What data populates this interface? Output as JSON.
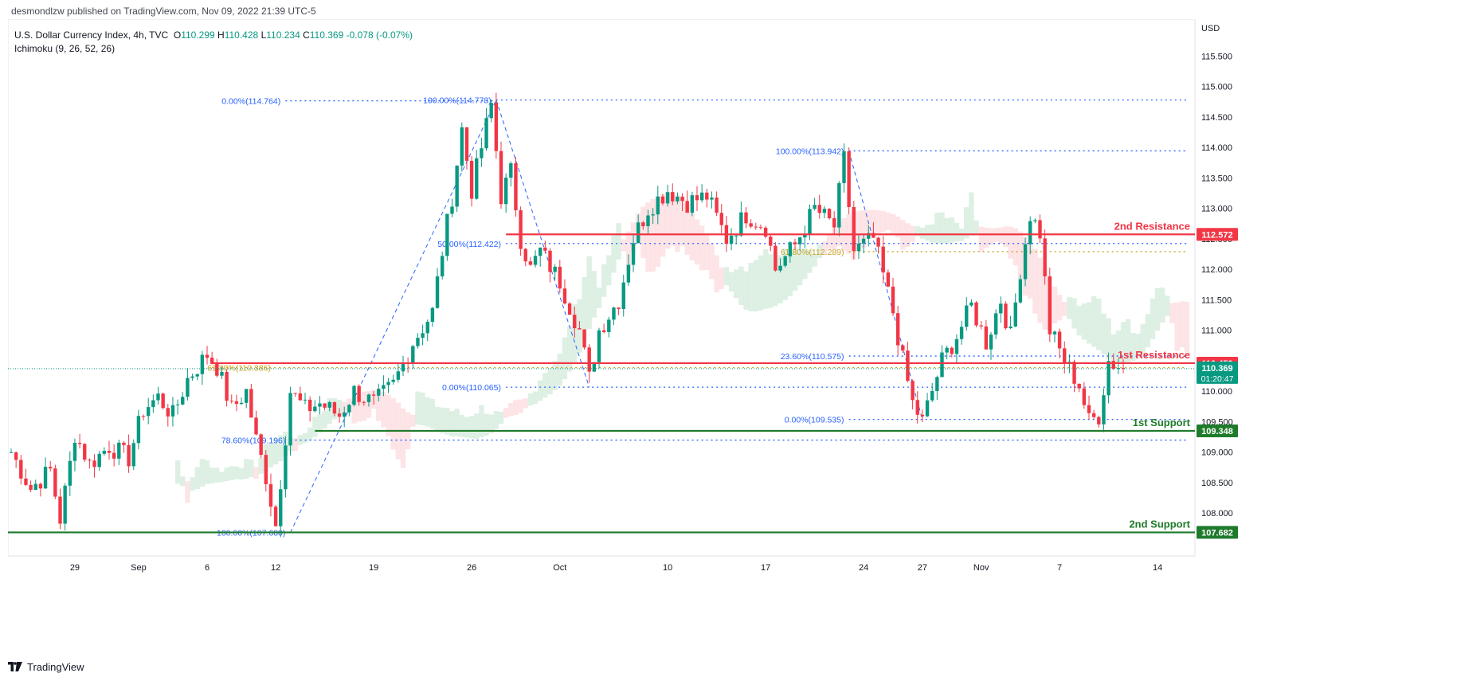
{
  "header": {
    "published": "desmondlzw published on TradingView.com, Nov 09, 2022 21:39 UTC-5"
  },
  "legend": {
    "symbol": "U.S. Dollar Currency Index, 4h, TVC",
    "o_label": "O",
    "o": "110.299",
    "h_label": "H",
    "h": "110.428",
    "l_label": "L",
    "l": "110.234",
    "c_label": "C",
    "c": "110.369",
    "change": "-0.078 (-0.07%)",
    "indicator": "Ichimoku (9, 26, 52, 26)"
  },
  "currency": "USD",
  "footer": {
    "brand": "TradingView"
  },
  "colors": {
    "up": "#089981",
    "down": "#f23645",
    "fib": "#2962ff",
    "fib_gold": "#c9a227",
    "support": "#1e7b2b",
    "resistance": "#f23645",
    "cloud_bull": "#cde8d6",
    "cloud_bear": "#fcd5d8"
  },
  "chart_data": {
    "type": "candlestick",
    "ylim": [
      107.4,
      116.0
    ],
    "y_ticks": [
      "108.000",
      "108.500",
      "109.000",
      "109.500",
      "110.000",
      "110.500",
      "111.000",
      "111.500",
      "112.000",
      "112.500",
      "113.000",
      "113.500",
      "114.000",
      "114.500",
      "115.000",
      "115.500"
    ],
    "x_ticks": [
      {
        "label": "29",
        "i": 13
      },
      {
        "label": "Sep",
        "i": 26
      },
      {
        "label": "6",
        "i": 40
      },
      {
        "label": "12",
        "i": 54
      },
      {
        "label": "19",
        "i": 74
      },
      {
        "label": "26",
        "i": 94
      },
      {
        "label": "Oct",
        "i": 112
      },
      {
        "label": "10",
        "i": 134
      },
      {
        "label": "17",
        "i": 154
      },
      {
        "label": "24",
        "i": 174
      },
      {
        "label": "27",
        "i": 186
      },
      {
        "label": "Nov",
        "i": 198
      },
      {
        "label": "7",
        "i": 214
      },
      {
        "label": "14",
        "i": 234
      }
    ],
    "close_path": [
      [
        0,
        109.0
      ],
      [
        4,
        108.4
      ],
      [
        8,
        108.7
      ],
      [
        10,
        107.9
      ],
      [
        12,
        108.8
      ],
      [
        13,
        109.3
      ],
      [
        16,
        108.8
      ],
      [
        20,
        109.1
      ],
      [
        24,
        108.9
      ],
      [
        27,
        109.7
      ],
      [
        30,
        109.9
      ],
      [
        33,
        109.6
      ],
      [
        36,
        110.2
      ],
      [
        40,
        110.6
      ],
      [
        42,
        110.4
      ],
      [
        45,
        109.7
      ],
      [
        48,
        110.0
      ],
      [
        50,
        109.2
      ],
      [
        52,
        108.6
      ],
      [
        54,
        107.8
      ],
      [
        57,
        110.0
      ],
      [
        60,
        109.7
      ],
      [
        63,
        109.8
      ],
      [
        67,
        109.6
      ],
      [
        70,
        110.0
      ],
      [
        74,
        109.8
      ],
      [
        78,
        110.1
      ],
      [
        82,
        110.8
      ],
      [
        86,
        111.3
      ],
      [
        88,
        112.3
      ],
      [
        90,
        113.2
      ],
      [
        92,
        114.3
      ],
      [
        94,
        113.3
      ],
      [
        96,
        114.0
      ],
      [
        98,
        114.7
      ],
      [
        100,
        113.2
      ],
      [
        102,
        113.6
      ],
      [
        104,
        112.5
      ],
      [
        106,
        112.0
      ],
      [
        108,
        112.3
      ],
      [
        112,
        111.8
      ],
      [
        116,
        111.0
      ],
      [
        118,
        110.2
      ],
      [
        120,
        111.0
      ],
      [
        124,
        111.5
      ],
      [
        127,
        112.5
      ],
      [
        130,
        113.0
      ],
      [
        134,
        113.3
      ],
      [
        138,
        113.1
      ],
      [
        142,
        113.2
      ],
      [
        146,
        112.5
      ],
      [
        150,
        112.9
      ],
      [
        154,
        112.7
      ],
      [
        156,
        112.0
      ],
      [
        160,
        112.4
      ],
      [
        164,
        113.0
      ],
      [
        168,
        112.7
      ],
      [
        170,
        113.8
      ],
      [
        172,
        112.3
      ],
      [
        176,
        112.5
      ],
      [
        178,
        111.9
      ],
      [
        180,
        111.3
      ],
      [
        182,
        110.5
      ],
      [
        184,
        109.8
      ],
      [
        186,
        109.5
      ],
      [
        188,
        110.0
      ],
      [
        190,
        110.5
      ],
      [
        193,
        110.9
      ],
      [
        196,
        111.4
      ],
      [
        199,
        110.8
      ],
      [
        202,
        111.5
      ],
      [
        204,
        110.9
      ],
      [
        206,
        112.0
      ],
      [
        208,
        112.9
      ],
      [
        210,
        112.6
      ],
      [
        212,
        111.0
      ],
      [
        215,
        110.5
      ],
      [
        218,
        110.1
      ],
      [
        220,
        109.5
      ],
      [
        222,
        109.6
      ],
      [
        224,
        110.5
      ],
      [
        227,
        110.369
      ]
    ],
    "levels": [
      {
        "name": "2nd Resistance",
        "value": 112.572,
        "label": "112.572"
      },
      {
        "name": "1st Resistance",
        "value": 110.459,
        "label": "110.459"
      },
      {
        "name": "1st Support",
        "value": 109.348,
        "label": "109.348"
      },
      {
        "name": "2nd Support",
        "value": 107.682,
        "label": "107.682"
      }
    ],
    "current_price": {
      "label": "110.369",
      "timer": "01:20:47"
    },
    "fibs": [
      {
        "text": "0.00%(114.764)",
        "value": 114.764
      },
      {
        "text": "100.00%(114.778)",
        "value": 114.778
      },
      {
        "text": "61.80%(110.386)",
        "value": 110.386
      },
      {
        "text": "78.60%(109.196)",
        "value": 109.196
      },
      {
        "text": "100.00%(107.680)",
        "value": 107.68
      },
      {
        "text": "50.00%(112.422)",
        "value": 112.422
      },
      {
        "text": "0.00%(110.065)",
        "value": 110.065
      },
      {
        "text": "100.00%(113.942)",
        "value": 113.942
      },
      {
        "text": "61.80%(112.289)",
        "value": 112.289
      },
      {
        "text": "23.60%(110.575)",
        "value": 110.575
      },
      {
        "text": "0.00%(109.535)",
        "value": 109.535
      }
    ]
  }
}
